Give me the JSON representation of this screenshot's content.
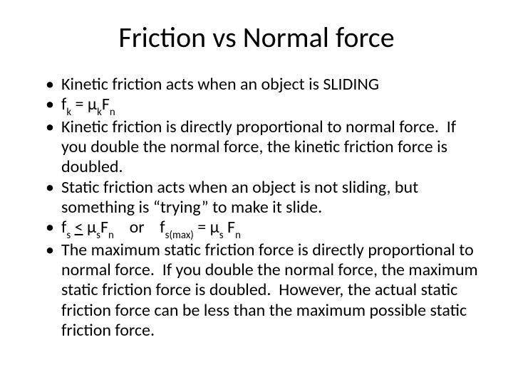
{
  "title": "Friction vs Normal force",
  "bullets": [
    {
      "html": "Kinetic friction acts when an object is SLIDING"
    },
    {
      "html": "f<span class=\"sub\">k</span> = μ<span class=\"sub\">k</span>F<span class=\"sub\">n</span>"
    },
    {
      "html": "Kinetic friction is directly proportional to normal force.&nbsp; If you double the normal force, the kinetic friction force is doubled."
    },
    {
      "html": "Static friction acts when an object is not sliding, but something is “trying” to make it slide."
    },
    {
      "html": "f<span class=\"sub\">s</span> <span class=\"under\">&lt;</span> μ<span class=\"sub\">s</span>F<span class=\"sub\">n</span>&nbsp;&nbsp;&nbsp;&nbsp;or&nbsp;&nbsp;&nbsp;&nbsp;f<span class=\"sub\">s(max)</span> = μ<span class=\"sub\">s</span> F<span class=\"sub\">n</span>"
    },
    {
      "html": "The maximum static friction force is directly proportional to normal force.&nbsp; If you double the normal force, the maximum static friction force is doubled.&nbsp; However, the actual static friction force can be less than the maximum possible static friction force."
    }
  ],
  "colors": {
    "background": "#ffffff",
    "text": "#000000"
  },
  "typography": {
    "title_fontsize": 40,
    "body_fontsize": 24,
    "font_family": "Calibri"
  }
}
